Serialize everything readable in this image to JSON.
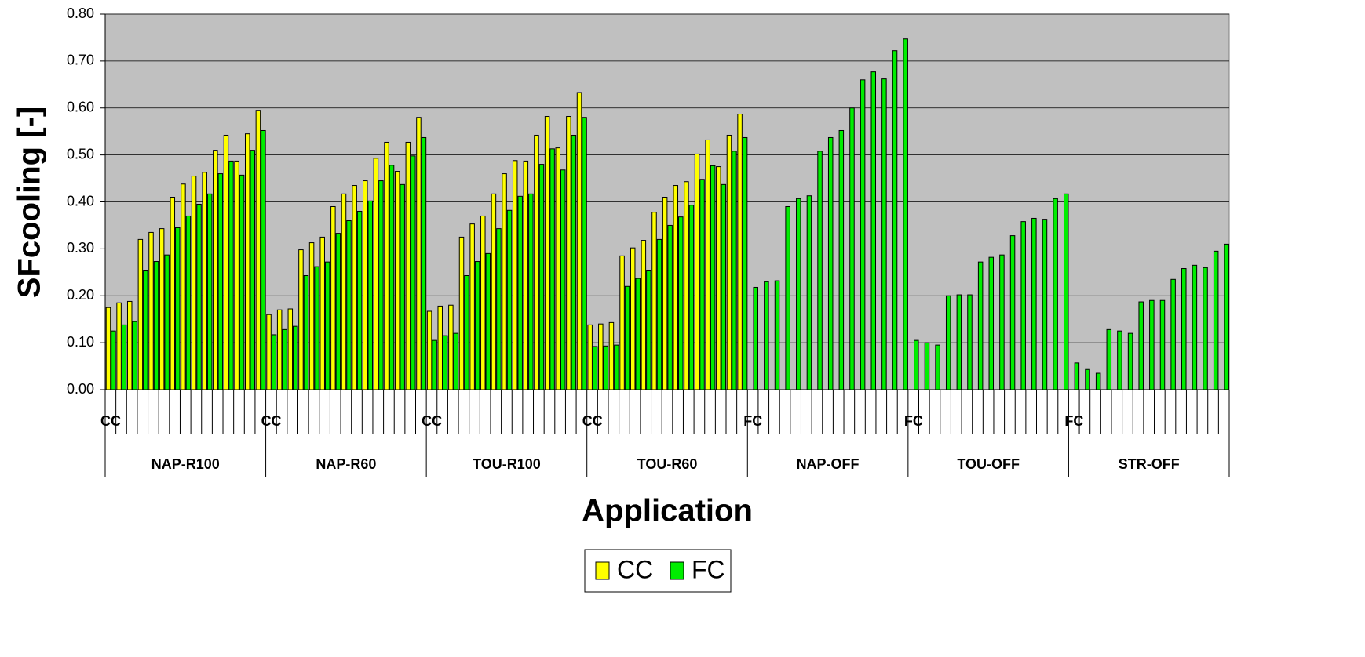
{
  "chart_data": {
    "type": "bar",
    "y_label": "SFcooling [-]",
    "x_label": "Application",
    "groups": [
      "NAP-R100",
      "NAP-R60",
      "TOU-R100",
      "TOU-R60",
      "NAP-OFF",
      "TOU-OFF",
      "STR-OFF"
    ],
    "categories": [
      "CC",
      null,
      null,
      null,
      null,
      null,
      null,
      null,
      null,
      null,
      null,
      null,
      null,
      null,
      null,
      "CC",
      null,
      null,
      null,
      null,
      null,
      null,
      null,
      null,
      null,
      null,
      null,
      null,
      null,
      null,
      "CC",
      null,
      null,
      null,
      null,
      null,
      null,
      null,
      null,
      null,
      null,
      null,
      null,
      null,
      null,
      "CC",
      null,
      null,
      null,
      null,
      null,
      null,
      null,
      null,
      null,
      null,
      null,
      null,
      null,
      null,
      "FC",
      null,
      null,
      null,
      null,
      null,
      null,
      null,
      null,
      null,
      null,
      null,
      null,
      null,
      null,
      "FC",
      null,
      null,
      null,
      null,
      null,
      null,
      null,
      null,
      null,
      null,
      null,
      null,
      null,
      null,
      "FC",
      null,
      null,
      null,
      null,
      null,
      null,
      null,
      null,
      null,
      null,
      null,
      null,
      null,
      null
    ],
    "series": [
      {
        "name": "CC",
        "color": "#ffff00",
        "values": [
          0.175,
          0.185,
          0.188,
          0.32,
          0.335,
          0.343,
          0.41,
          0.438,
          0.455,
          0.463,
          0.51,
          0.542,
          0.487,
          0.545,
          0.595,
          0.16,
          0.17,
          0.172,
          0.298,
          0.313,
          0.325,
          0.39,
          0.417,
          0.435,
          0.445,
          0.493,
          0.527,
          0.465,
          0.527,
          0.58,
          0.167,
          0.178,
          0.18,
          0.325,
          0.353,
          0.37,
          0.417,
          0.46,
          0.488,
          0.487,
          0.542,
          0.582,
          0.515,
          0.582,
          0.633,
          0.138,
          0.14,
          0.143,
          0.285,
          0.302,
          0.318,
          0.378,
          0.41,
          0.435,
          0.443,
          0.502,
          0.532,
          0.475,
          0.542,
          0.587,
          null,
          null,
          null,
          null,
          null,
          null,
          null,
          null,
          null,
          null,
          null,
          null,
          null,
          null,
          null,
          null,
          null,
          null,
          null,
          null,
          null,
          null,
          null,
          null,
          null,
          null,
          null,
          null,
          null,
          null,
          null,
          null,
          null,
          null,
          null,
          null,
          null,
          null,
          null,
          null,
          null,
          null,
          null,
          null,
          null
        ]
      },
      {
        "name": "FC",
        "color": "#00ee00",
        "values": [
          0.125,
          0.138,
          0.145,
          0.253,
          0.273,
          0.287,
          0.345,
          0.37,
          0.395,
          0.417,
          0.46,
          0.487,
          0.457,
          0.51,
          0.552,
          0.117,
          0.128,
          0.135,
          0.243,
          0.262,
          0.272,
          0.333,
          0.36,
          0.38,
          0.402,
          0.445,
          0.478,
          0.437,
          0.498,
          0.537,
          0.105,
          0.115,
          0.12,
          0.243,
          0.273,
          0.29,
          0.343,
          0.382,
          0.412,
          0.417,
          0.48,
          0.513,
          0.468,
          0.542,
          0.58,
          0.092,
          0.093,
          0.095,
          0.22,
          0.237,
          0.253,
          0.32,
          0.35,
          0.368,
          0.393,
          0.448,
          0.477,
          0.437,
          0.508,
          0.537,
          0.218,
          0.23,
          0.232,
          0.39,
          0.407,
          0.413,
          0.508,
          0.537,
          0.552,
          0.6,
          0.66,
          0.677,
          0.662,
          0.722,
          0.747,
          0.105,
          0.1,
          0.095,
          0.2,
          0.202,
          0.202,
          0.272,
          0.282,
          0.287,
          0.328,
          0.358,
          0.365,
          0.363,
          0.407,
          0.417,
          0.057,
          0.043,
          0.035,
          0.128,
          0.125,
          0.12,
          0.187,
          0.19,
          0.19,
          0.235,
          0.258,
          0.265,
          0.26,
          0.295,
          0.31
        ]
      }
    ],
    "ylim": [
      0,
      0.8
    ],
    "yticks": [
      {
        "value": 0,
        "label": "0.00"
      },
      {
        "value": 0.1,
        "label": "0.10"
      },
      {
        "value": 0.2,
        "label": "0.20"
      },
      {
        "value": 0.3,
        "label": "0.30"
      },
      {
        "value": 0.4,
        "label": "0.40"
      },
      {
        "value": 0.5,
        "label": "0.50"
      },
      {
        "value": 0.6,
        "label": "0.60"
      },
      {
        "value": 0.7,
        "label": "0.70"
      },
      {
        "value": 0.8,
        "label": "0.80"
      }
    ],
    "grid": true,
    "legend": "bottom"
  }
}
